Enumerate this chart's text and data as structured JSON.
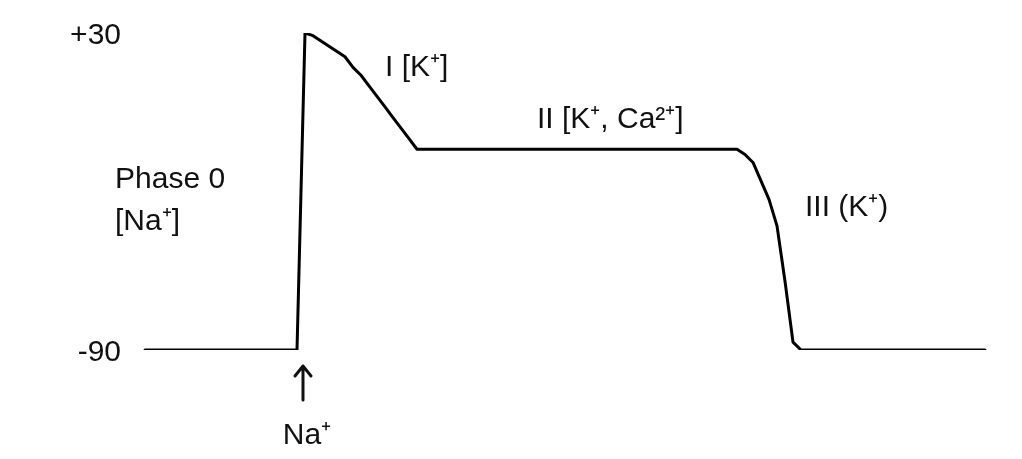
{
  "chart_data": {
    "type": "line",
    "categories": [
      null,
      null,
      null,
      null,
      null,
      null,
      null,
      null,
      null,
      null,
      null,
      null,
      null,
      null,
      null,
      null,
      null,
      null,
      null,
      null,
      null,
      null,
      null,
      null,
      null,
      null,
      null,
      null,
      null,
      null,
      null,
      null,
      null,
      null,
      null,
      null,
      null,
      null,
      null,
      null,
      null,
      null,
      null,
      null,
      null,
      null,
      null,
      null,
      null,
      null,
      null,
      null,
      null,
      null,
      null,
      null,
      null,
      null,
      null,
      null,
      null,
      null,
      null,
      null,
      null,
      null,
      null,
      null,
      null,
      null,
      null,
      null,
      null,
      null,
      null,
      null,
      null,
      null,
      null,
      null,
      null,
      null,
      null,
      null,
      null,
      null,
      null,
      null,
      null,
      null,
      null,
      null,
      null,
      null,
      null,
      null,
      null,
      null,
      null,
      null,
      null,
      null,
      null,
      null,
      null,
      null
    ],
    "values": [
      -90,
      -90,
      -90,
      -90,
      -90,
      -90,
      -90,
      -90,
      -90,
      -90,
      -90,
      -90,
      -90,
      -90,
      -90,
      -90,
      -90,
      -90,
      -90,
      -90,
      30,
      29,
      27,
      25,
      23,
      21,
      17,
      14,
      10,
      6,
      2,
      -2,
      -6,
      -10,
      -14,
      -14,
      -14,
      -14,
      -14,
      -14,
      -14,
      -14,
      -14,
      -14,
      -14,
      -14,
      -14,
      -14,
      -14,
      -14,
      -14,
      -14,
      -14,
      -14,
      -14,
      -14,
      -14,
      -14,
      -14,
      -14,
      -14,
      -14,
      -14,
      -14,
      -14,
      -14,
      -14,
      -14,
      -14,
      -14,
      -14,
      -14,
      -14,
      -14,
      -14,
      -16,
      -19,
      -26,
      -33,
      -43,
      -64,
      -87,
      -90,
      -90,
      -90,
      -90,
      -90,
      -90,
      -90,
      -90,
      -90,
      -90,
      -90,
      -90,
      -90,
      -90,
      -90,
      -90,
      -90,
      -90,
      -90,
      -90,
      -90,
      -90,
      -90,
      -90
    ],
    "color": "#000000",
    "ylim": [
      -90,
      30
    ],
    "yticks": [
      {
        "value": 30,
        "label": "+30"
      },
      -90
    ],
    "tick_labels": "y",
    "marker": "none",
    "annotations": [
      "Phase 0 [Na⁺]",
      "I [K⁺]",
      "II [K⁺, Ca²⁺]",
      "III (K⁺)",
      "Na⁺"
    ]
  }
}
